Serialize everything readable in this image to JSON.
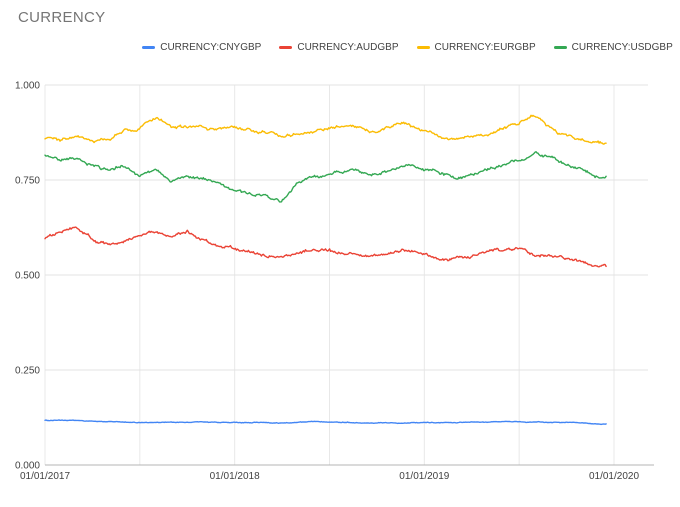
{
  "title": "CURRENCY",
  "chart_data": {
    "type": "line",
    "title": "CURRENCY",
    "legend_position": "top",
    "grid": true,
    "x_axis": {
      "tick_labels": [
        "01/01/2017",
        "01/01/2018",
        "01/01/2019",
        "01/01/2020"
      ],
      "tick_months": [
        0,
        12,
        24,
        36
      ],
      "gridline_months": [
        0,
        6,
        12,
        18,
        24,
        30,
        36
      ]
    },
    "y_axis": {
      "tick_labels": [
        "0.000",
        "0.250",
        "0.500",
        "0.750",
        "1.000"
      ],
      "ticks": [
        0,
        0.25,
        0.5,
        0.75,
        1
      ],
      "range": [
        0,
        1
      ]
    },
    "series": [
      {
        "name": "CURRENCY:CNYGBP",
        "color": "#4285F4",
        "jitter": 0.0012,
        "monthly_values": [
          0.118,
          0.117,
          0.117,
          0.115,
          0.114,
          0.113,
          0.112,
          0.113,
          0.112,
          0.112,
          0.113,
          0.112,
          0.112,
          0.111,
          0.112,
          0.111,
          0.112,
          0.113,
          0.114,
          0.113,
          0.112,
          0.112,
          0.111,
          0.112,
          0.113,
          0.112,
          0.112,
          0.112,
          0.113,
          0.113,
          0.113,
          0.112,
          0.113,
          0.112,
          0.111,
          0.11
        ]
      },
      {
        "name": "CURRENCY:AUDGBP",
        "color": "#EA4335",
        "jitter": 0.0055,
        "monthly_values": [
          0.598,
          0.612,
          0.622,
          0.592,
          0.576,
          0.583,
          0.596,
          0.608,
          0.604,
          0.612,
          0.592,
          0.58,
          0.57,
          0.558,
          0.548,
          0.545,
          0.556,
          0.563,
          0.568,
          0.56,
          0.553,
          0.548,
          0.556,
          0.562,
          0.556,
          0.548,
          0.542,
          0.552,
          0.558,
          0.562,
          0.566,
          0.556,
          0.55,
          0.545,
          0.535,
          0.522
        ]
      },
      {
        "name": "CURRENCY:EURGBP",
        "color": "#FBBC04",
        "jitter": 0.005,
        "monthly_values": [
          0.858,
          0.85,
          0.864,
          0.846,
          0.856,
          0.876,
          0.89,
          0.92,
          0.89,
          0.89,
          0.888,
          0.88,
          0.88,
          0.883,
          0.875,
          0.87,
          0.876,
          0.88,
          0.886,
          0.896,
          0.89,
          0.877,
          0.887,
          0.898,
          0.877,
          0.866,
          0.857,
          0.862,
          0.872,
          0.89,
          0.9,
          0.922,
          0.888,
          0.864,
          0.856,
          0.846
        ]
      },
      {
        "name": "CURRENCY:USDGBP",
        "color": "#34A853",
        "jitter": 0.005,
        "monthly_values": [
          0.815,
          0.8,
          0.808,
          0.786,
          0.775,
          0.784,
          0.766,
          0.775,
          0.742,
          0.754,
          0.754,
          0.742,
          0.72,
          0.714,
          0.71,
          0.7,
          0.744,
          0.754,
          0.76,
          0.775,
          0.765,
          0.765,
          0.778,
          0.788,
          0.776,
          0.764,
          0.756,
          0.766,
          0.776,
          0.79,
          0.8,
          0.822,
          0.81,
          0.79,
          0.775,
          0.762
        ]
      }
    ]
  }
}
